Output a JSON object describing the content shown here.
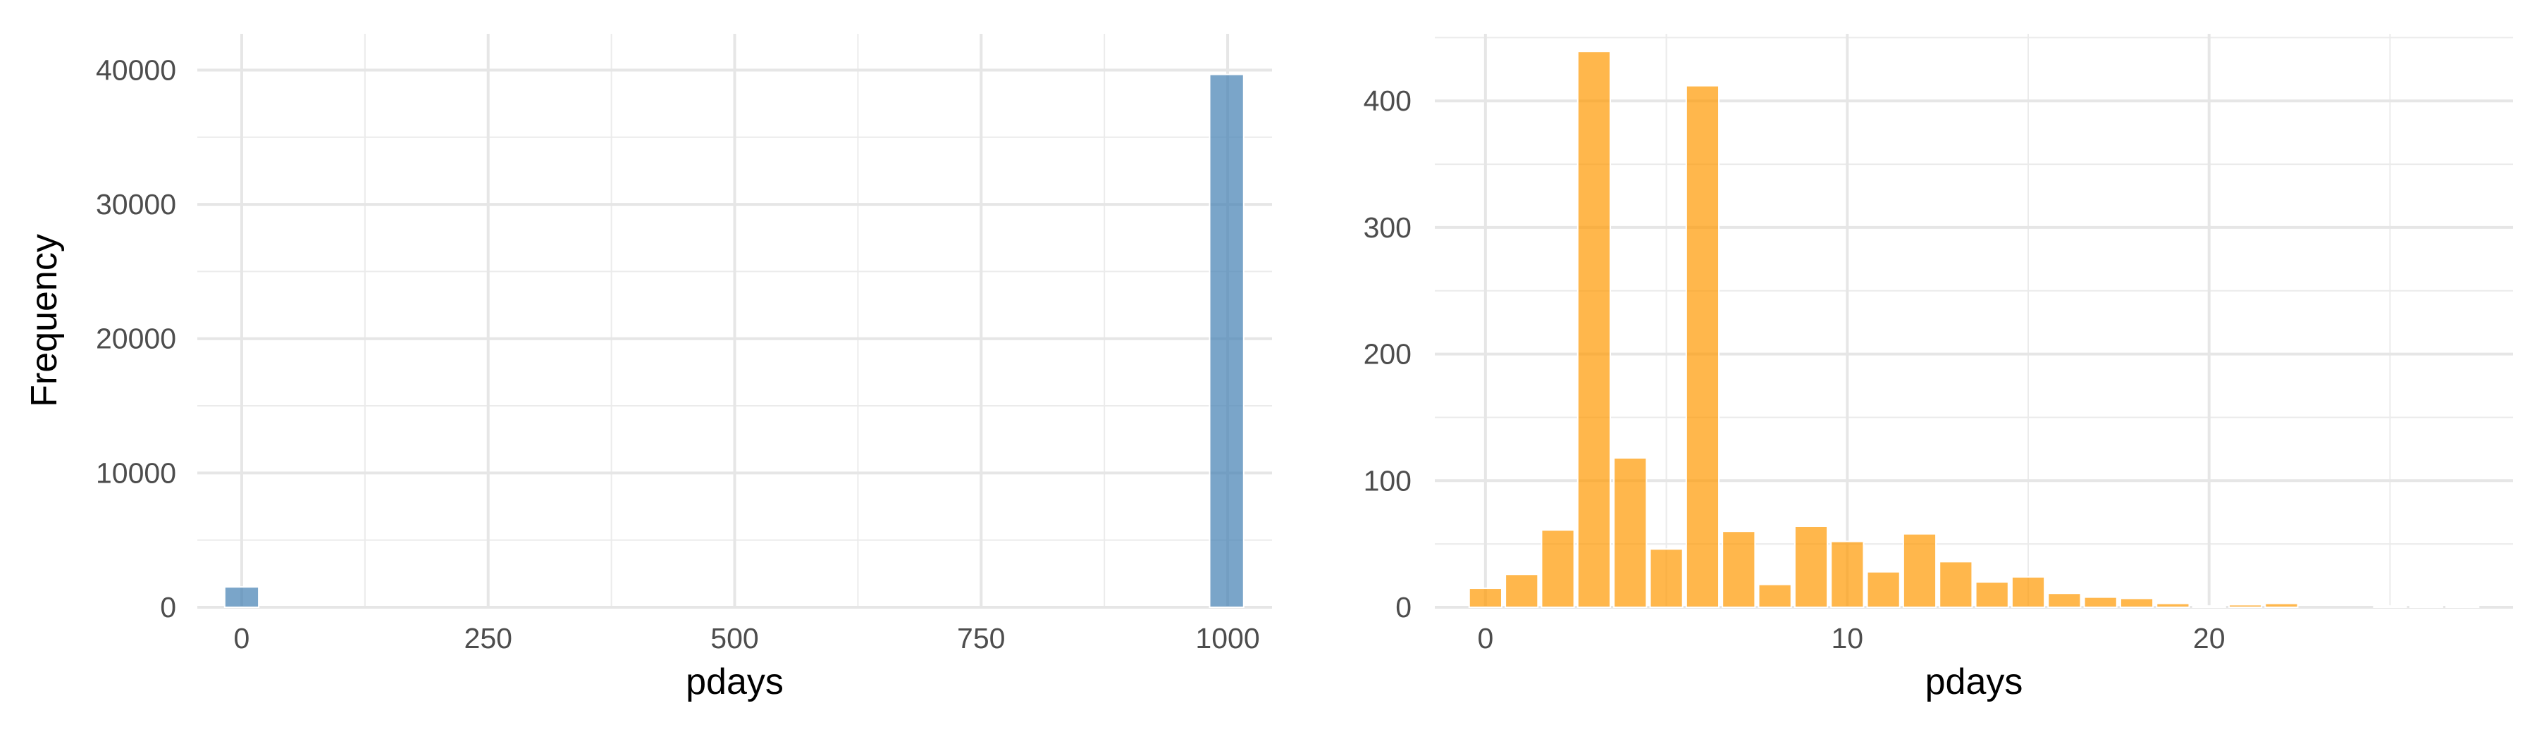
{
  "chart_data": [
    {
      "type": "bar",
      "title": "",
      "xlabel": "pdays",
      "ylabel": "Frequency",
      "xlim": [
        -45,
        1045
      ],
      "ylim": [
        0,
        42700
      ],
      "x_ticks": [
        0,
        250,
        500,
        750,
        1000
      ],
      "x_tick_labels": [
        "0",
        "250",
        "500",
        "750",
        "1000"
      ],
      "y_ticks": [
        0,
        10000,
        20000,
        30000,
        40000
      ],
      "y_tick_labels": [
        "0",
        "10000",
        "20000",
        "30000",
        "40000"
      ],
      "grid": true,
      "legend": "none",
      "bin_width": 34.5,
      "bins": [
        {
          "x": 0,
          "count": 1515
        },
        {
          "x": 999,
          "count": 39673
        }
      ],
      "color": "#4682B4"
    },
    {
      "type": "bar",
      "title": "",
      "xlabel": "pdays",
      "ylabel": "",
      "xlim": [
        -1.4,
        28.4
      ],
      "ylim": [
        0,
        453
      ],
      "x_ticks": [
        0,
        10,
        20
      ],
      "x_tick_labels": [
        "0",
        "10",
        "20"
      ],
      "y_ticks": [
        0,
        100,
        200,
        300,
        400
      ],
      "y_tick_labels": [
        "0",
        "100",
        "200",
        "300",
        "400"
      ],
      "grid": true,
      "legend": "none",
      "bin_width": 0.9,
      "bins": [
        {
          "x": 0,
          "count": 15
        },
        {
          "x": 1,
          "count": 26
        },
        {
          "x": 2,
          "count": 61
        },
        {
          "x": 3,
          "count": 439
        },
        {
          "x": 4,
          "count": 118
        },
        {
          "x": 5,
          "count": 46
        },
        {
          "x": 6,
          "count": 412
        },
        {
          "x": 7,
          "count": 60
        },
        {
          "x": 8,
          "count": 18
        },
        {
          "x": 9,
          "count": 64
        },
        {
          "x": 10,
          "count": 52
        },
        {
          "x": 11,
          "count": 28
        },
        {
          "x": 12,
          "count": 58
        },
        {
          "x": 13,
          "count": 36
        },
        {
          "x": 14,
          "count": 20
        },
        {
          "x": 15,
          "count": 24
        },
        {
          "x": 16,
          "count": 11
        },
        {
          "x": 17,
          "count": 8
        },
        {
          "x": 18,
          "count": 7
        },
        {
          "x": 19,
          "count": 3
        },
        {
          "x": 20,
          "count": 1
        },
        {
          "x": 21,
          "count": 2
        },
        {
          "x": 22,
          "count": 3
        },
        {
          "x": 25,
          "count": 1
        },
        {
          "x": 26,
          "count": 1
        },
        {
          "x": 27,
          "count": 1
        }
      ],
      "color": "#FF9900"
    }
  ]
}
